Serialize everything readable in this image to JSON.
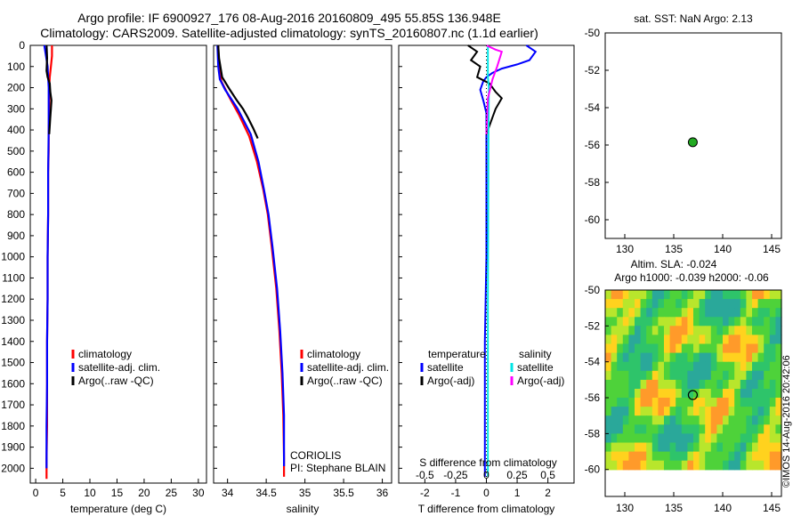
{
  "header": {
    "line1": "Argo profile: IF 6900927_176 08-Aug-2016 20160809_495 55.85S 136.948E",
    "line2": "Climatology: CARS2009. Satellite-adjusted climatology: synTS_20160807.nc (1.1d earlier)"
  },
  "credit": "©IMOS 14-Aug-2016 20:42:06",
  "colors": {
    "climatology": "#ff0000",
    "satellite": "#0000ff",
    "argo": "#000000",
    "sal_satellite": "#00e5e5",
    "sal_argo": "#ff00ff",
    "marker": "#22aa22"
  },
  "chart_data": [
    {
      "id": "temperature",
      "type": "line",
      "xlabel": "temperature (deg C)",
      "ylabel": "",
      "xlim": [
        -1,
        31.5
      ],
      "ylim": [
        2070,
        0
      ],
      "xticks": [
        0,
        5,
        10,
        15,
        20,
        25,
        30
      ],
      "xticklabels": [
        "0",
        "5",
        "10",
        "15",
        "20",
        "25",
        "30"
      ],
      "yticks": [
        0,
        100,
        200,
        300,
        400,
        500,
        600,
        700,
        800,
        900,
        1000,
        1100,
        1200,
        1300,
        1400,
        1500,
        1600,
        1700,
        1800,
        1900,
        2000
      ],
      "legend": [
        "climatology",
        "satellite-adj. clim.",
        "Argo(..raw -QC)"
      ],
      "series": [
        {
          "name": "climatology",
          "color": "#ff0000",
          "x": [
            3.0,
            3.0,
            2.8,
            2.6,
            2.5,
            2.5,
            2.4,
            2.4,
            2.3,
            2.3,
            2.2,
            2.2,
            2.1,
            2.1,
            2.1,
            2.0,
            2.0
          ],
          "y": [
            0,
            50,
            100,
            150,
            200,
            300,
            400,
            500,
            600,
            800,
            1000,
            1200,
            1400,
            1600,
            1800,
            1950,
            2050
          ]
        },
        {
          "name": "satellite-adj. clim.",
          "color": "#0000ff",
          "x": [
            1.6,
            1.9,
            2.2,
            2.3,
            2.4,
            2.4,
            2.4,
            2.3,
            2.3,
            2.2,
            2.2,
            2.1,
            2.1,
            2.0,
            2.0,
            2.0
          ],
          "y": [
            0,
            50,
            100,
            150,
            200,
            300,
            400,
            600,
            800,
            1000,
            1200,
            1400,
            1600,
            1800,
            1950,
            2000
          ]
        },
        {
          "name": "Argo(..raw -QC)",
          "color": "#000000",
          "x": [
            2.0,
            2.1,
            2.0,
            2.2,
            2.6,
            2.7,
            2.9,
            2.8,
            2.7,
            2.6,
            2.5
          ],
          "y": [
            0,
            60,
            120,
            150,
            180,
            220,
            260,
            300,
            340,
            380,
            420
          ]
        }
      ]
    },
    {
      "id": "salinity",
      "type": "line",
      "xlabel": "salinity",
      "ylabel": "",
      "xlim": [
        33.82,
        36.12
      ],
      "ylim": [
        2070,
        0
      ],
      "xticks": [
        34,
        34.5,
        35,
        35.5,
        36
      ],
      "xticklabels": [
        "34",
        "34.5",
        "35",
        "35.5",
        "36"
      ],
      "legend": [
        "climatology",
        "satellite-adj. clim.",
        "Argo(..raw -QC)"
      ],
      "annotation": [
        "CORIOLIS",
        "PI: Stephane BLAIN"
      ],
      "series": [
        {
          "name": "climatology",
          "color": "#ff0000",
          "x": [
            33.88,
            33.89,
            33.92,
            34.03,
            34.15,
            34.28,
            34.38,
            34.46,
            34.52,
            34.57,
            34.63,
            34.67,
            34.7,
            34.72,
            34.73,
            34.73
          ],
          "y": [
            0,
            100,
            170,
            250,
            330,
            430,
            550,
            680,
            800,
            950,
            1150,
            1350,
            1550,
            1750,
            1950,
            2040
          ]
        },
        {
          "name": "satellite-adj. clim.",
          "color": "#0000ff",
          "x": [
            33.87,
            33.88,
            33.9,
            33.97,
            34.13,
            34.3,
            34.4,
            34.47,
            34.53,
            34.58,
            34.64,
            34.68,
            34.71,
            34.73,
            34.73
          ],
          "y": [
            0,
            100,
            160,
            210,
            300,
            420,
            550,
            680,
            800,
            950,
            1150,
            1350,
            1550,
            1750,
            1990
          ]
        },
        {
          "name": "Argo(..raw -QC)",
          "color": "#000000",
          "x": [
            33.88,
            33.89,
            33.93,
            34.03,
            34.12,
            34.2,
            34.26,
            34.33,
            34.39
          ],
          "y": [
            0,
            60,
            150,
            210,
            260,
            300,
            340,
            390,
            440
          ]
        }
      ]
    },
    {
      "id": "difference",
      "type": "line",
      "xlabel": "T difference from climatology",
      "secondary_label": "S difference from climatology",
      "xlim": [
        -2.85,
        2.85
      ],
      "ylim": [
        2070,
        0
      ],
      "xticks": [
        -2,
        -1,
        0,
        1,
        2
      ],
      "xticklabels": [
        "-2",
        "-1",
        "0",
        "1",
        "2"
      ],
      "sticks": [
        -0.5,
        -0.25,
        0,
        0.25,
        0.5
      ],
      "sticklabels": [
        "-0.5",
        "-0.25",
        "0",
        "0.25",
        "0.5"
      ],
      "legend_headers": [
        "temperature",
        "salinity"
      ],
      "legend": [
        "satellite",
        "Argo(-adj)",
        "satellite",
        "Argo(-adj)"
      ],
      "series": [
        {
          "name": "satellite",
          "color": "#0000ff",
          "x": [
            1.3,
            1.6,
            1.4,
            1.0,
            0.5,
            0.2,
            0.0,
            -0.1,
            -0.2,
            -0.1,
            0.0,
            0.0,
            0.0,
            0.0,
            -0.05,
            -0.05,
            -0.05
          ],
          "y": [
            0,
            30,
            70,
            90,
            110,
            130,
            150,
            170,
            210,
            260,
            320,
            400,
            600,
            1000,
            1400,
            1800,
            2040
          ]
        },
        {
          "name": "Argo(-adj)",
          "color": "#000000",
          "x": [
            -0.6,
            -0.3,
            -0.5,
            -0.2,
            -0.3,
            0.1,
            0.3,
            0.5,
            0.3,
            0.2,
            0.0
          ],
          "y": [
            0,
            30,
            70,
            100,
            150,
            180,
            220,
            250,
            300,
            340,
            420
          ]
        },
        {
          "name": "satellite",
          "color": "#00e5e5",
          "x": [
            0.05,
            0.05,
            0.08,
            0.07,
            0.06,
            0.05,
            0.05,
            0.05
          ],
          "y": [
            0,
            150,
            200,
            400,
            800,
            1200,
            1600,
            2040
          ]
        },
        {
          "name": "Argo(-adj)",
          "color": "#ff00ff",
          "x": [
            0.0,
            0.3,
            0.5,
            0.35,
            0.2,
            0.05,
            0.0
          ],
          "y": [
            0,
            20,
            30,
            100,
            160,
            250,
            420
          ]
        }
      ]
    },
    {
      "id": "sst-map",
      "type": "scatter",
      "title": "sat. SST: NaN Argo: 2.13",
      "xlim": [
        128,
        146
      ],
      "ylim": [
        -61,
        -50
      ],
      "xticks": [
        130,
        135,
        140,
        145
      ],
      "xticklabels": [
        "130",
        "135",
        "140",
        "145"
      ],
      "yticks": [
        -50,
        -52,
        -54,
        -56,
        -58,
        -60
      ],
      "yticklabels": [
        "-50",
        "-52",
        "-54",
        "-56",
        "-58",
        "-60"
      ],
      "points": [
        {
          "x": 136.948,
          "y": -55.85
        }
      ]
    },
    {
      "id": "sla-map",
      "type": "heatmap",
      "title_lines": [
        "Altim. SLA: -0.024",
        "Argo h1000: -0.039 h2000: -0.06"
      ],
      "xlim": [
        128,
        146
      ],
      "ylim": [
        -61.5,
        -50
      ],
      "data_extent": {
        "x": [
          128,
          146
        ],
        "y": [
          -60,
          -50
        ]
      },
      "xticks": [
        130,
        135,
        140,
        145
      ],
      "xticklabels": [
        "130",
        "135",
        "140",
        "145"
      ],
      "yticks": [
        -50,
        -52,
        -54,
        -56,
        -58,
        -60
      ],
      "yticklabels": [
        "-50",
        "-52",
        "-54",
        "-56",
        "-58",
        "-60"
      ],
      "points": [
        {
          "x": 136.948,
          "y": -55.85
        }
      ]
    }
  ]
}
